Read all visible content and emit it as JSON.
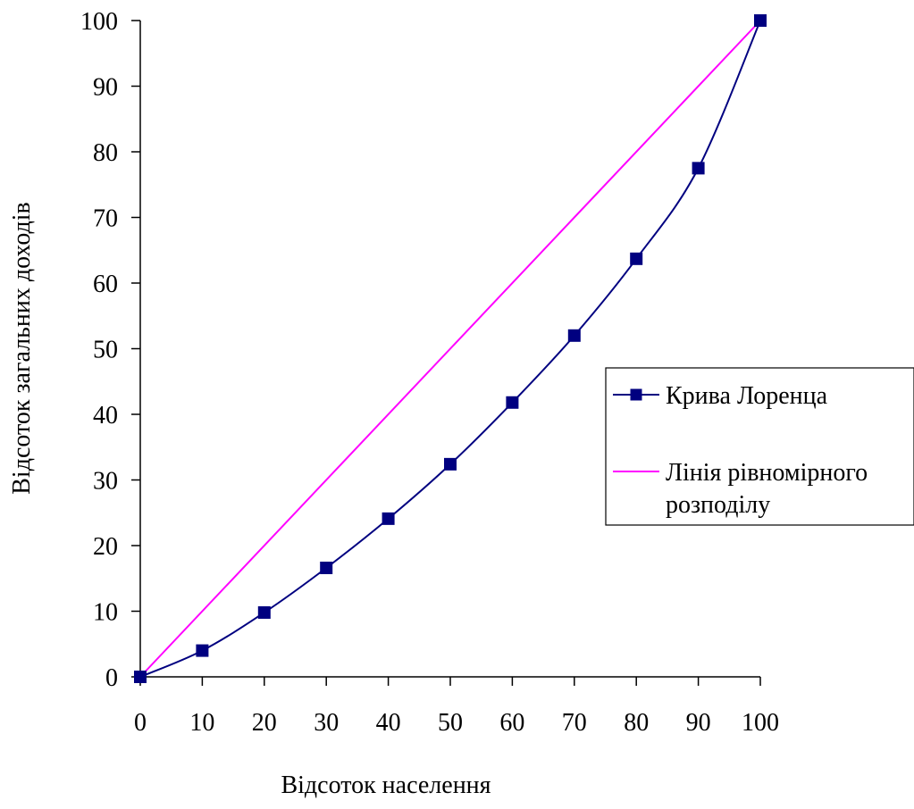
{
  "chart_data": {
    "type": "line",
    "xlabel": "Відсоток населення",
    "ylabel": "Відсоток загальних доходів",
    "xlim": [
      0,
      100
    ],
    "ylim": [
      0,
      100
    ],
    "x_ticks": [
      "0",
      "10",
      "20",
      "30",
      "40",
      "50",
      "60",
      "70",
      "80",
      "90",
      "100"
    ],
    "y_ticks": [
      "0",
      "10",
      "20",
      "30",
      "40",
      "50",
      "60",
      "70",
      "80",
      "90",
      "100"
    ],
    "grid": false,
    "legend_position": "right",
    "series": [
      {
        "name": "Крива Лоренца",
        "color": "#000080",
        "marker": "square",
        "smooth": true,
        "x": [
          0,
          10,
          20,
          30,
          40,
          50,
          60,
          70,
          80,
          90,
          100
        ],
        "y": [
          0,
          4,
          9.8,
          16.6,
          24.1,
          32.4,
          41.8,
          52,
          63.7,
          77.5,
          100
        ]
      },
      {
        "name": "Лінія рівномірного розподілу",
        "name_lines": [
          "Лінія рівномірного",
          "розподілу"
        ],
        "color": "#ff00ff",
        "marker": "none",
        "smooth": false,
        "x": [
          0,
          100
        ],
        "y": [
          0,
          100
        ]
      }
    ]
  }
}
